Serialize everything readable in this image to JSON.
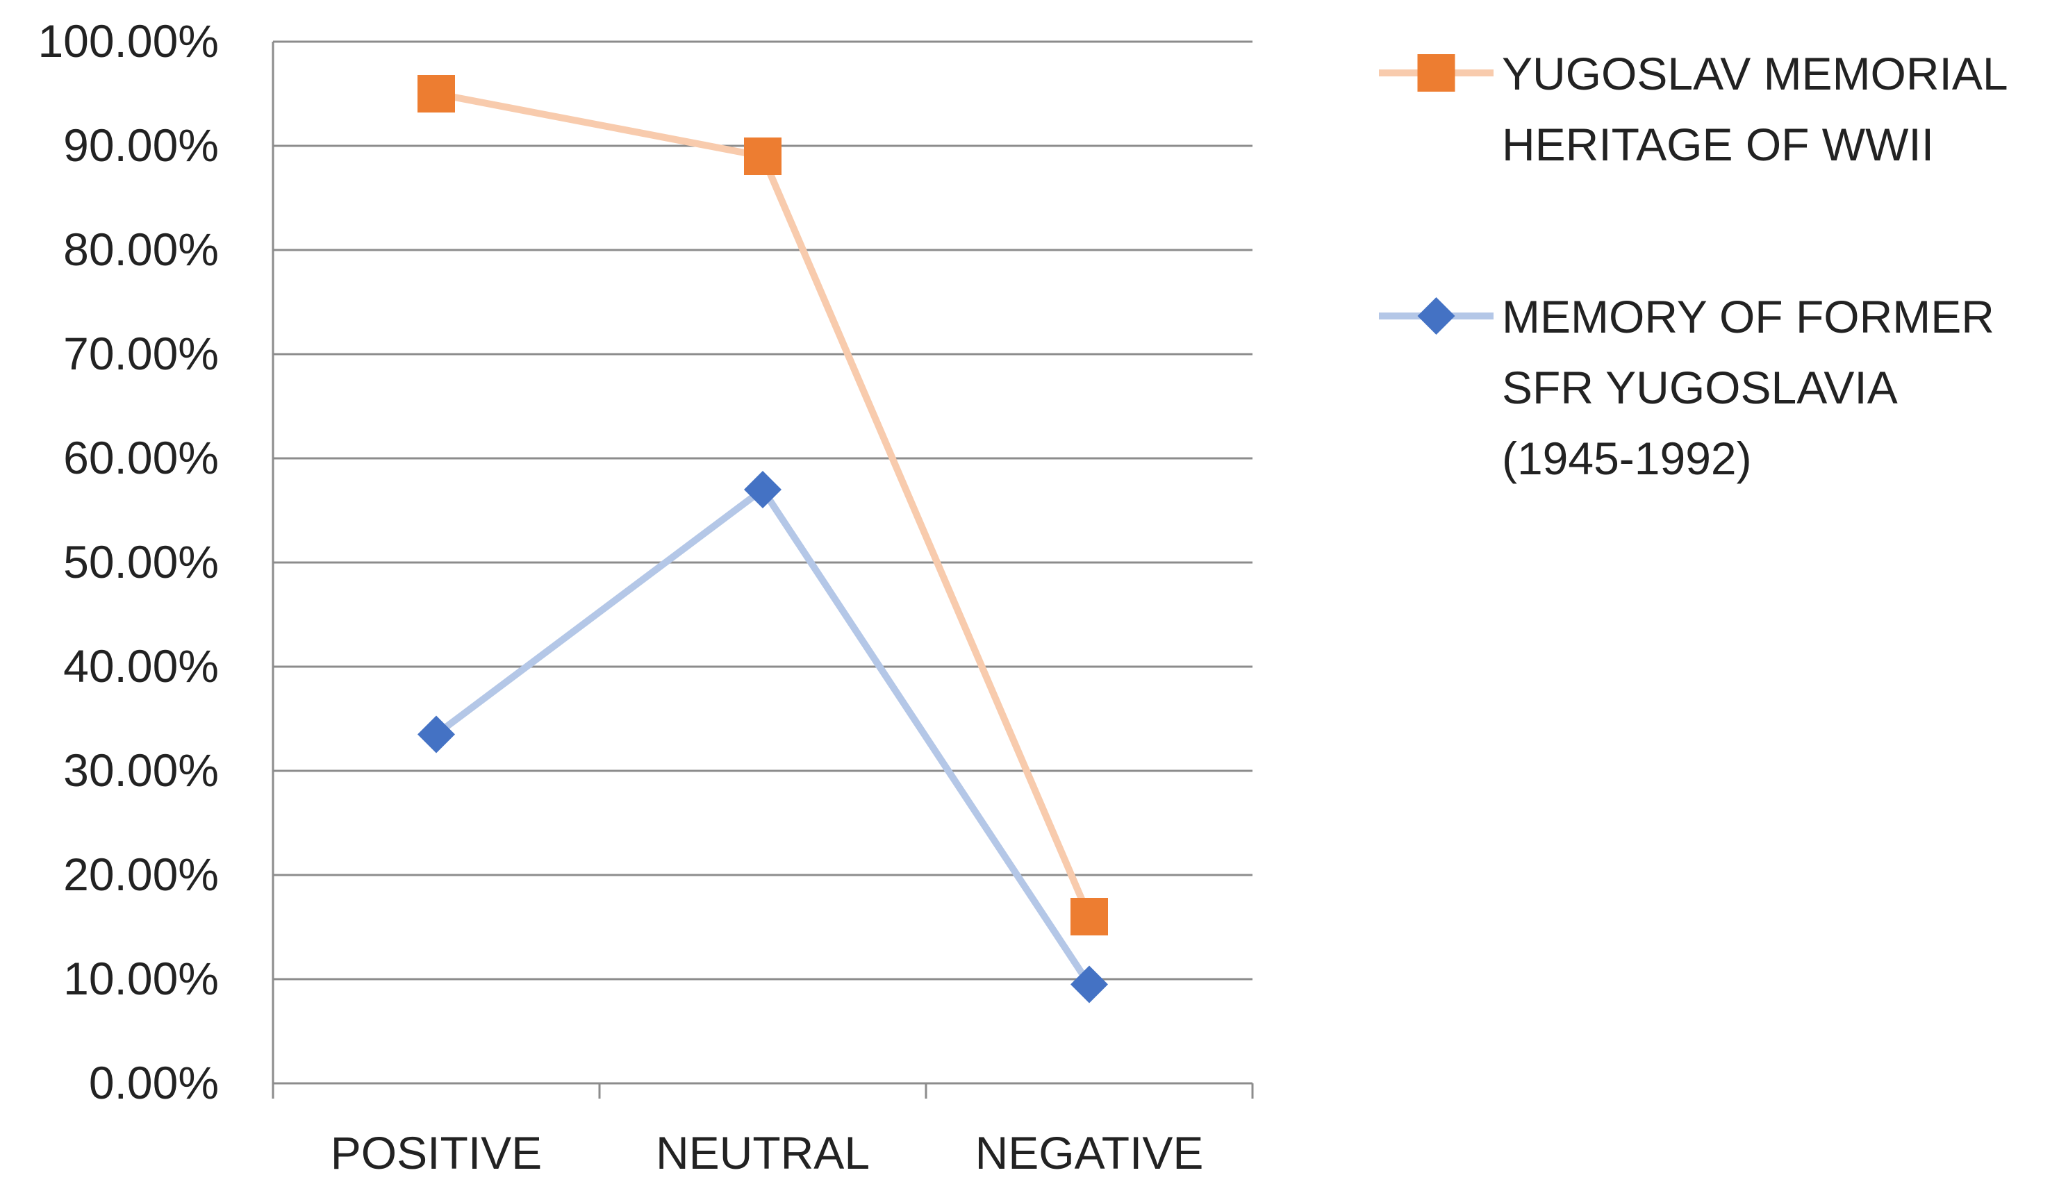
{
  "chart_data": {
    "type": "line",
    "categories": [
      "POSITIVE",
      "NEUTRAL",
      "NEGATIVE"
    ],
    "series": [
      {
        "name_lines": [
          "YUGOSLAV MEMORIAL",
          "HERITAGE OF WWII"
        ],
        "values": [
          95.0,
          89.0,
          16.0
        ],
        "line_color": "#f8cbad",
        "marker_color": "#ed7d31",
        "marker": "square"
      },
      {
        "name_lines": [
          "MEMORY OF FORMER",
          "SFR YUGOSLAVIA",
          "(1945-1992)"
        ],
        "values": [
          33.5,
          57.0,
          9.5
        ],
        "line_color": "#b4c7e7",
        "marker_color": "#4472c4",
        "marker": "diamond"
      }
    ],
    "ylim": [
      0,
      100
    ],
    "yticks": [
      0,
      10,
      20,
      30,
      40,
      50,
      60,
      70,
      80,
      90,
      100
    ],
    "ytick_labels": [
      "0.00%",
      "10.00%",
      "20.00%",
      "30.00%",
      "40.00%",
      "50.00%",
      "60.00%",
      "70.00%",
      "80.00%",
      "90.00%",
      "100.00%"
    ],
    "grid": true,
    "legend": "right",
    "title": "",
    "xlabel": "",
    "ylabel": ""
  }
}
